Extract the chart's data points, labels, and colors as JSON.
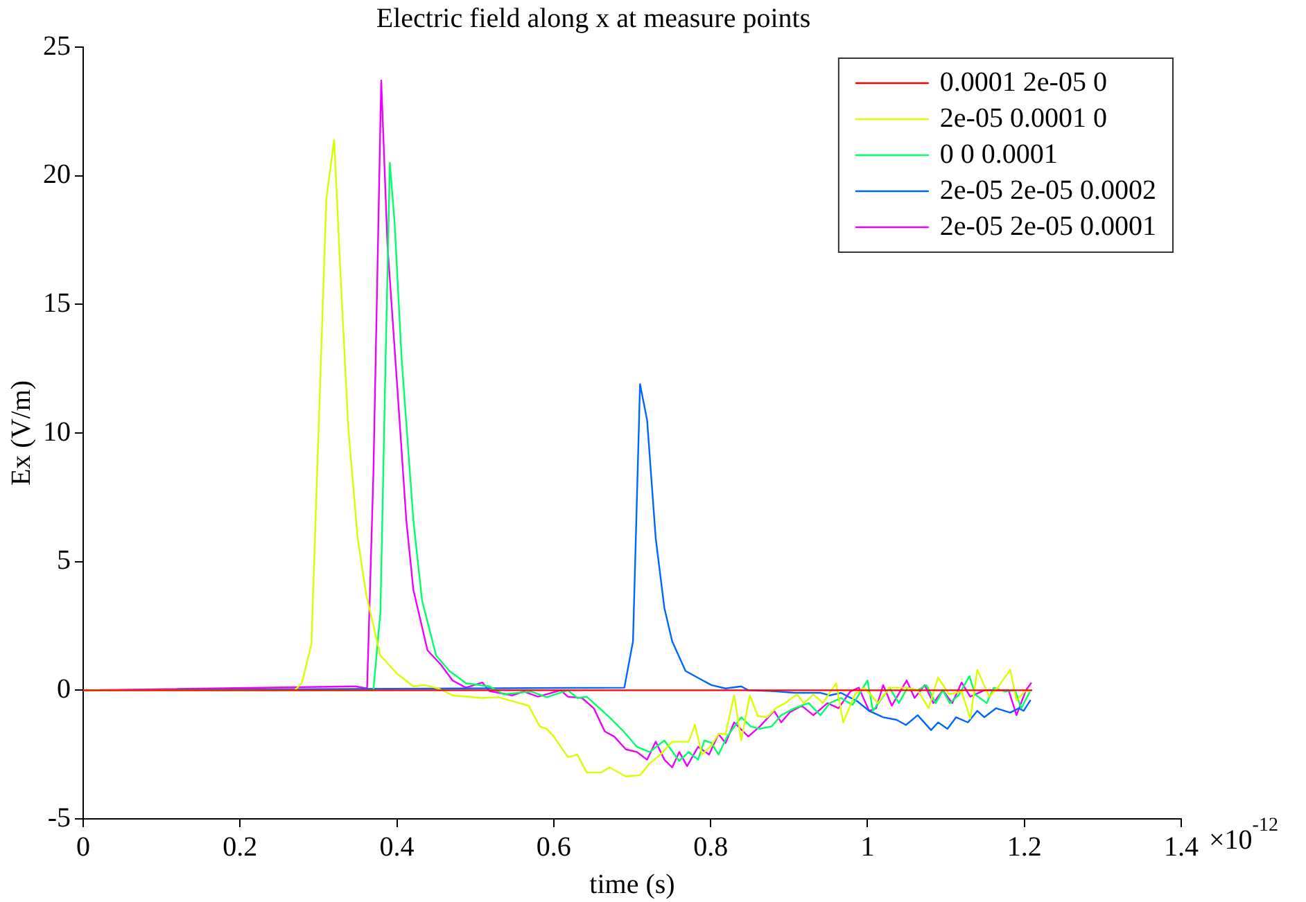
{
  "chart_data": {
    "type": "line",
    "title": "Electric field along x at measure points",
    "xlabel": "time (s)",
    "ylabel": "Ex (V/m)",
    "annotations": [
      "×10$^{-12}$"
    ],
    "xlim": [
      0,
      1.4
    ],
    "xticks": [
      0,
      0.2,
      0.4,
      0.6,
      0.8,
      1,
      1.2,
      1.4
    ],
    "ylim": [
      -5,
      25
    ],
    "yticks": [
      -5,
      0,
      5,
      10,
      15,
      20,
      25
    ],
    "grid": false,
    "legend": "top right",
    "marker": "none",
    "line_style": "solid",
    "series": [
      {
        "name": "0.0001 2e-05 0",
        "color": "#ff0000",
        "x": [
          0,
          0.6,
          1.21
        ],
        "values": [
          0,
          0,
          0
        ]
      },
      {
        "name": "2e-05 0.0001 0",
        "color": "#d8ff00",
        "x": [
          0,
          0.27,
          0.279,
          0.291,
          0.31,
          0.32,
          0.329,
          0.338,
          0.35,
          0.361,
          0.379,
          0.4,
          0.421,
          0.435,
          0.453,
          0.471,
          0.509,
          0.529,
          0.568,
          0.582,
          0.591,
          0.6,
          0.618,
          0.63,
          0.642,
          0.66,
          0.671,
          0.692,
          0.71,
          0.722,
          0.736,
          0.751,
          0.772,
          0.78,
          0.789,
          0.801,
          0.81,
          0.819,
          0.83,
          0.839,
          0.85,
          0.86,
          0.872,
          0.883,
          0.895,
          0.91,
          0.919,
          0.931,
          0.943,
          0.96,
          0.969,
          0.984,
          0.996,
          1.013,
          1.028,
          1.049,
          1.064,
          1.078,
          1.09,
          1.104,
          1.12,
          1.131,
          1.14,
          1.155,
          1.166,
          1.182,
          1.19,
          1.202,
          1.208
        ],
        "values": [
          0,
          0,
          0.3,
          1.8,
          19.1,
          21.4,
          15.6,
          10.2,
          5.9,
          3.7,
          1.35,
          0.65,
          0.15,
          0.2,
          0.07,
          -0.2,
          -0.3,
          -0.27,
          -0.6,
          -1.4,
          -1.5,
          -1.8,
          -2.6,
          -2.5,
          -3.2,
          -3.2,
          -3,
          -3.35,
          -3.3,
          -2.85,
          -2.5,
          -2,
          -2,
          -1.35,
          -2.5,
          -2.15,
          -1.7,
          -1.7,
          -0.2,
          -1.95,
          -0.2,
          -1,
          -1.05,
          -0.7,
          -0.5,
          -0.16,
          -0.5,
          -0.16,
          -0.5,
          0.27,
          -1.25,
          -0.16,
          0.1,
          -0.5,
          0.1,
          0.1,
          0,
          -0.7,
          0.5,
          -0.16,
          -0.05,
          -1.1,
          0.8,
          -0.25,
          0.1,
          0.8,
          -0.4,
          0,
          -0.05
        ]
      },
      {
        "name": "0 0 0.0001",
        "color": "#00ff66",
        "x": [
          0,
          0.37,
          0.379,
          0.385,
          0.391,
          0.397,
          0.406,
          0.421,
          0.432,
          0.45,
          0.467,
          0.488,
          0.518,
          0.536,
          0.571,
          0.591,
          0.618,
          0.63,
          0.642,
          0.671,
          0.689,
          0.706,
          0.722,
          0.741,
          0.76,
          0.772,
          0.784,
          0.792,
          0.801,
          0.81,
          0.821,
          0.839,
          0.851,
          0.863,
          0.878,
          0.89,
          0.907,
          0.925,
          0.94,
          0.952,
          0.966,
          0.981,
          1,
          1.007,
          1.028,
          1.04,
          1.051,
          1.064,
          1.075,
          1.087,
          1.096,
          1.105,
          1.117,
          1.13,
          1.137,
          1.152,
          1.161,
          1.175,
          1.188,
          1.196,
          1.208
        ],
        "values": [
          0,
          0,
          3.05,
          12,
          20.5,
          18.2,
          12.9,
          6.6,
          3.5,
          1.35,
          0.75,
          0.27,
          0.15,
          -0.16,
          -0.05,
          -0.27,
          0,
          -0.3,
          -0.25,
          -1.05,
          -1.6,
          -2.2,
          -2.4,
          -1.95,
          -2.75,
          -2.4,
          -2.7,
          -1.95,
          -2.05,
          -2.5,
          -1.8,
          -1.05,
          -1.4,
          -1.5,
          -1.4,
          -0.97,
          -0.7,
          -0.5,
          -0.97,
          -0.5,
          -0.3,
          -0.57,
          0.38,
          -0.8,
          0.1,
          -0.5,
          0.1,
          0,
          0.2,
          -0.5,
          0,
          -0.5,
          -0.16,
          0.55,
          -0.16,
          -0.5,
          0.1,
          -0.05,
          0,
          -0.7,
          0
        ]
      },
      {
        "name": "2e-05 2e-05 0.0002",
        "color": "#0066ff",
        "x": [
          0,
          0.69,
          0.701,
          0.71,
          0.719,
          0.73,
          0.741,
          0.751,
          0.768,
          0.784,
          0.801,
          0.819,
          0.839,
          0.848,
          0.878,
          0.907,
          0.94,
          0.952,
          0.966,
          0.987,
          1.002,
          1.02,
          1.037,
          1.049,
          1.064,
          1.081,
          1.09,
          1.102,
          1.113,
          1.128,
          1.14,
          1.149,
          1.164,
          1.182,
          1.193,
          1.199,
          1.208
        ],
        "values": [
          0,
          0.1,
          1.9,
          11.9,
          10.5,
          5.9,
          3.2,
          1.9,
          0.75,
          0.48,
          0.2,
          0.07,
          0.15,
          0,
          -0.03,
          -0.1,
          -0.1,
          -0.2,
          -0.1,
          -0.43,
          -0.8,
          -1.05,
          -1.15,
          -1.35,
          -0.97,
          -1.55,
          -1.25,
          -1.5,
          -1.05,
          -1.25,
          -0.8,
          -1.05,
          -0.7,
          -0.87,
          -0.7,
          -0.8,
          -0.38
        ]
      },
      {
        "name": "2e-05 2e-05 0.0001",
        "color": "#ee00ff",
        "x": [
          0,
          0.347,
          0.362,
          0.37,
          0.38,
          0.388,
          0.4,
          0.412,
          0.421,
          0.439,
          0.456,
          0.471,
          0.488,
          0.509,
          0.518,
          0.547,
          0.562,
          0.58,
          0.609,
          0.618,
          0.636,
          0.651,
          0.665,
          0.677,
          0.692,
          0.706,
          0.719,
          0.73,
          0.741,
          0.751,
          0.76,
          0.77,
          0.784,
          0.798,
          0.81,
          0.819,
          0.83,
          0.848,
          0.863,
          0.881,
          0.89,
          0.901,
          0.916,
          0.931,
          0.949,
          0.963,
          0.978,
          0.989,
          1.002,
          1.011,
          1.02,
          1.031,
          1.05,
          1.06,
          1.073,
          1.084,
          1.096,
          1.108,
          1.12,
          1.131,
          1.149,
          1.166,
          1.18,
          1.19,
          1.202,
          1.209
        ],
        "values": [
          0,
          0.15,
          0.07,
          8.4,
          23.7,
          17.3,
          12,
          6.6,
          3.9,
          1.55,
          1,
          0.38,
          0.1,
          0.3,
          -0.03,
          -0.2,
          -0.05,
          -0.25,
          0,
          -0.25,
          -0.3,
          -0.7,
          -1.6,
          -1.8,
          -2.3,
          -2.4,
          -2.7,
          -2,
          -2.7,
          -3,
          -2.4,
          -2.95,
          -2.2,
          -2.5,
          -1.7,
          -2.05,
          -1.25,
          -1.8,
          -1.4,
          -0.8,
          -1.25,
          -0.85,
          -0.6,
          -0.97,
          -0.5,
          -0.7,
          -0.05,
          0.1,
          -0.8,
          -0.7,
          0.2,
          -0.6,
          0.38,
          -0.3,
          0.2,
          -0.5,
          0,
          -0.5,
          0.3,
          -0.25,
          0,
          0,
          0,
          -0.97,
          0,
          0.3
        ]
      }
    ]
  }
}
